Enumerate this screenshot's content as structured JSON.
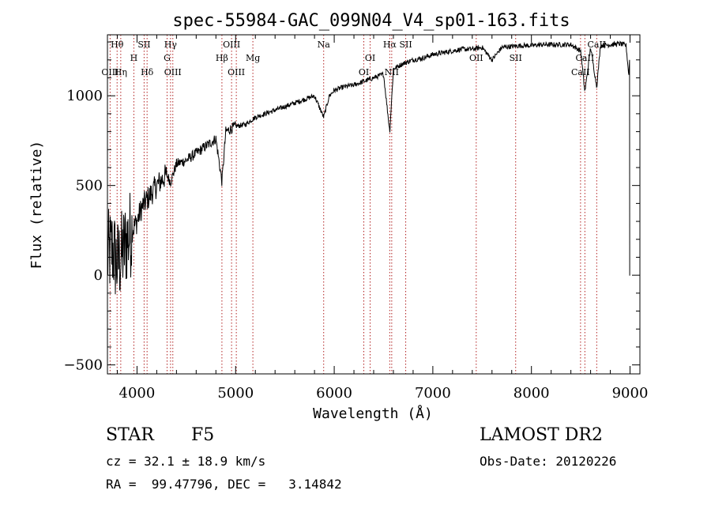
{
  "chart_data": {
    "type": "line",
    "title": "spec-55984-GAC_099N04_V4_sp01-163.fits",
    "xlabel": "Wavelength (Å)",
    "ylabel": "Flux (relative)",
    "xlim": [
      3700,
      9100
    ],
    "ylim": [
      -550,
      1340
    ],
    "xticks": [
      4000,
      5000,
      6000,
      7000,
      8000,
      9000
    ],
    "yticks": [
      -500,
      0,
      500,
      1000
    ],
    "xtick_labels": [
      "4000",
      "5000",
      "6000",
      "7000",
      "8000",
      "9000"
    ],
    "ytick_labels": [
      "−500",
      "0",
      "500",
      "1000"
    ],
    "grid": false,
    "series": [
      {
        "color": "#000000",
        "x": [
          3700,
          3750,
          3800,
          3850,
          3900,
          3950,
          4000,
          4050,
          4100,
          4200,
          4300,
          4340,
          4400,
          4500,
          4600,
          4700,
          4800,
          4861,
          4900,
          5000,
          5100,
          5200,
          5300,
          5400,
          5500,
          5600,
          5700,
          5800,
          5893,
          5950,
          6000,
          6100,
          6200,
          6300,
          6400,
          6500,
          6563,
          6600,
          6700,
          6800,
          6900,
          7000,
          7100,
          7200,
          7300,
          7400,
          7500,
          7600,
          7700,
          7800,
          7900,
          8000,
          8100,
          8200,
          8300,
          8400,
          8500,
          8542,
          8600,
          8662,
          8700,
          8800,
          8900,
          8960,
          8990,
          9000
        ],
        "y": [
          100,
          150,
          60,
          120,
          200,
          250,
          300,
          380,
          420,
          500,
          560,
          520,
          620,
          640,
          680,
          720,
          760,
          520,
          800,
          830,
          840,
          880,
          900,
          920,
          940,
          960,
          980,
          1000,
          880,
          1000,
          1030,
          1050,
          1060,
          1080,
          1100,
          1120,
          800,
          1150,
          1180,
          1200,
          1210,
          1230,
          1240,
          1250,
          1260,
          1260,
          1270,
          1200,
          1270,
          1275,
          1280,
          1280,
          1285,
          1285,
          1285,
          1285,
          1250,
          1020,
          1270,
          1050,
          1280,
          1285,
          1290,
          1280,
          1100,
          0
        ]
      }
    ],
    "lines": [
      {
        "label": "Hθ",
        "wavelength": 3798,
        "row": 0
      },
      {
        "label": "OIII",
        "wavelength": 3727,
        "row": 2
      },
      {
        "label": "Hη",
        "wavelength": 3835,
        "row": 2
      },
      {
        "label": "SII",
        "wavelength": 4072,
        "row": 0
      },
      {
        "label": "H",
        "wavelength": 3968,
        "row": 1
      },
      {
        "label": "Hδ",
        "wavelength": 4102,
        "row": 2
      },
      {
        "label": "Hγ",
        "wavelength": 4340,
        "row": 0
      },
      {
        "label": "G",
        "wavelength": 4305,
        "row": 1
      },
      {
        "label": "OIII",
        "wavelength": 4363,
        "row": 2
      },
      {
        "label": "OIII",
        "wavelength": 4959,
        "row": 0
      },
      {
        "label": "Hβ",
        "wavelength": 4861,
        "row": 1
      },
      {
        "label": "OIII",
        "wavelength": 5007,
        "row": 2
      },
      {
        "label": "Mg",
        "wavelength": 5175,
        "row": 1
      },
      {
        "label": "Na",
        "wavelength": 5893,
        "row": 0
      },
      {
        "label": "OI",
        "wavelength": 6364,
        "row": 1
      },
      {
        "label": "OI",
        "wavelength": 6300,
        "row": 2
      },
      {
        "label": "Hα",
        "wavelength": 6563,
        "row": 0
      },
      {
        "label": "SII",
        "wavelength": 6725,
        "row": 0
      },
      {
        "label": "NII",
        "wavelength": 6583,
        "row": 2
      },
      {
        "label": "OII",
        "wavelength": 7440,
        "row": 1
      },
      {
        "label": "SII",
        "wavelength": 7840,
        "row": 1
      },
      {
        "label": "CaII",
        "wavelength": 8542,
        "row": 1
      },
      {
        "label": "CaII",
        "wavelength": 8662,
        "row": 0
      },
      {
        "label": "CaII",
        "wavelength": 8498,
        "row": 2
      }
    ]
  },
  "footer": {
    "class_label": "STAR",
    "subclass": "F5",
    "survey": "LAMOST DR2",
    "cz": "cz = 32.1 ± 18.9 km/s",
    "obs_date": "Obs-Date: 20120226",
    "radec": "RA =  99.47796, DEC =   3.14842"
  }
}
